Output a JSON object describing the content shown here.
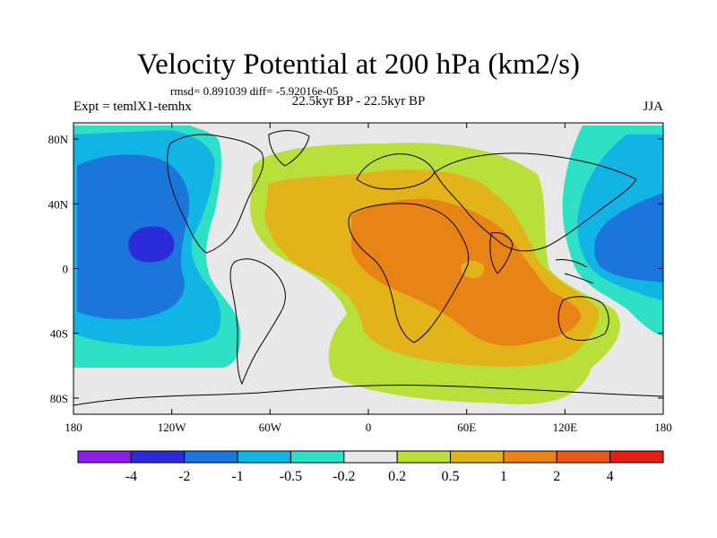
{
  "title": "Velocity Potential at 200 hPa (km2/s)",
  "stats_line": "rmsd= 0.891039 diff= -5.92016e-05",
  "experiment_label": "Expt = temlX1-temhx",
  "period_label": "22.5kyr BP - 22.5kyr BP",
  "season_label": "JJA",
  "map": {
    "projection": "cylindrical-equidistant",
    "lon_range": [
      -180,
      180
    ],
    "lat_range": [
      -90,
      90
    ],
    "lon_ticks": [
      {
        "value": -180,
        "label": "180"
      },
      {
        "value": -120,
        "label": "120W"
      },
      {
        "value": -60,
        "label": "60W"
      },
      {
        "value": 0,
        "label": "0"
      },
      {
        "value": 60,
        "label": "60E"
      },
      {
        "value": 120,
        "label": "120E"
      },
      {
        "value": 180,
        "label": "180"
      }
    ],
    "lat_ticks": [
      {
        "value": 80,
        "label": "80N"
      },
      {
        "value": 40,
        "label": "40N"
      },
      {
        "value": 0,
        "label": "0"
      },
      {
        "value": -40,
        "label": "40S"
      },
      {
        "value": -80,
        "label": "80S"
      }
    ]
  },
  "colorbar": {
    "colors": [
      "#8f1fe6",
      "#2b2bd9",
      "#1a76db",
      "#12b4e6",
      "#2de0c6",
      "#e8e8e8",
      "#b9e03a",
      "#e2b41a",
      "#e88316",
      "#e85a1a",
      "#e02014"
    ],
    "labels": [
      "-4",
      "-2",
      "-1",
      "-0.5",
      "-0.2",
      "0.2",
      "0.5",
      "1",
      "2",
      "4"
    ]
  }
}
